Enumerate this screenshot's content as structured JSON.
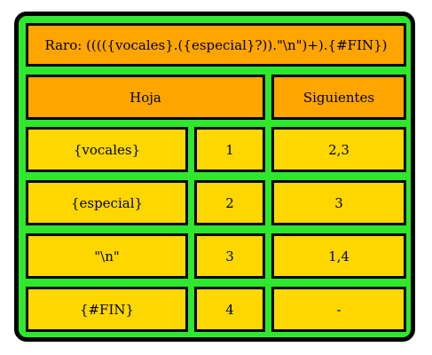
{
  "title": "Raro: (((({vocales}.({especial}?)).\"\\n\")+).{#FIN})",
  "headers": {
    "leaf": "Hoja",
    "next": "Siguientes"
  },
  "rows": [
    {
      "leaf": "{vocales}",
      "num": "1",
      "next": "2,3"
    },
    {
      "leaf": "{especial}",
      "num": "2",
      "next": "3"
    },
    {
      "leaf": "\"\\n\"",
      "num": "3",
      "next": "1,4"
    },
    {
      "leaf": "{#FIN}",
      "num": "4",
      "next": "-"
    }
  ],
  "colors": {
    "border": "#000000",
    "background_green": "#2ee82e",
    "header_orange": "#ffa500",
    "cell_gold": "#ffd700"
  }
}
